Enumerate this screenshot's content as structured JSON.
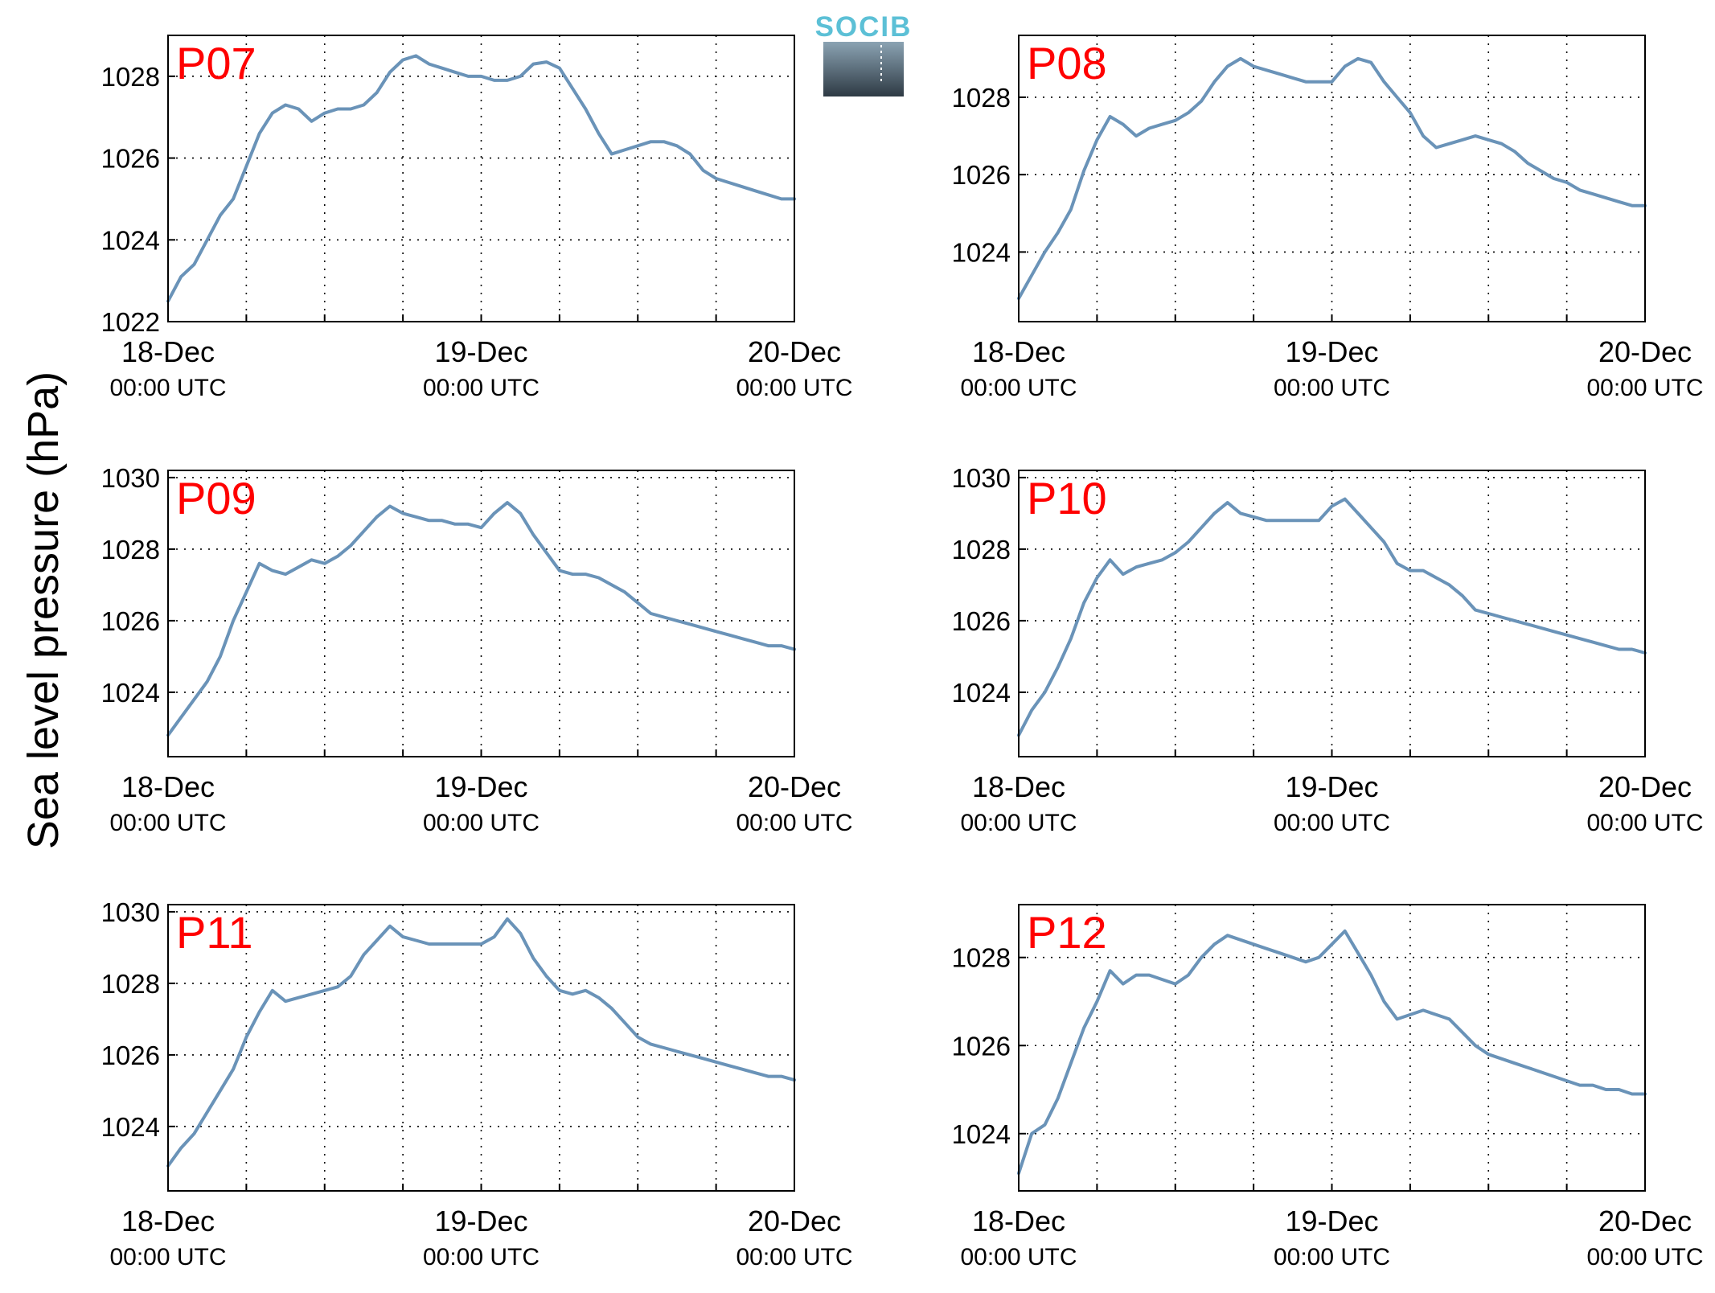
{
  "figure": {
    "ylabel": "Sea level pressure (hPa)",
    "logo_text": "SOCIB",
    "colors": {
      "line": "#6A93B8",
      "title": "#FF0000",
      "logo_top": "#5CC0D6",
      "logo_dark": "#2E3A44"
    }
  },
  "chart_data": [
    {
      "type": "line",
      "title": "P07",
      "x_unit": "hours since 18-Dec 00:00 UTC",
      "x_ticks": [
        {
          "date": "18-Dec",
          "time": "00:00 UTC"
        },
        {
          "date": "19-Dec",
          "time": "00:00 UTC"
        },
        {
          "date": "20-Dec",
          "time": "00:00 UTC"
        }
      ],
      "xlim": [
        0,
        48
      ],
      "ylim": [
        1022,
        1029
      ],
      "yticks": [
        1022,
        1024,
        1026,
        1028
      ],
      "grid": true,
      "x": [
        0,
        1,
        2,
        3,
        4,
        5,
        6,
        7,
        8,
        9,
        10,
        11,
        12,
        13,
        14,
        15,
        16,
        17,
        18,
        19,
        20,
        21,
        22,
        23,
        24,
        25,
        26,
        27,
        28,
        29,
        30,
        31,
        32,
        33,
        34,
        35,
        36,
        37,
        38,
        39,
        40,
        41,
        42,
        43,
        44,
        45,
        46,
        47,
        48
      ],
      "y": [
        1022.5,
        1023.1,
        1023.4,
        1024.0,
        1024.6,
        1025.0,
        1025.8,
        1026.6,
        1027.1,
        1027.3,
        1027.2,
        1026.9,
        1027.1,
        1027.2,
        1027.2,
        1027.3,
        1027.6,
        1028.1,
        1028.4,
        1028.5,
        1028.3,
        1028.2,
        1028.1,
        1028.0,
        1028.0,
        1027.9,
        1027.9,
        1028.0,
        1028.3,
        1028.35,
        1028.2,
        1027.7,
        1027.2,
        1026.6,
        1026.1,
        1026.2,
        1026.3,
        1026.4,
        1026.4,
        1026.3,
        1026.1,
        1025.7,
        1025.5,
        1025.4,
        1025.3,
        1025.2,
        1025.1,
        1025.0,
        1025.0
      ]
    },
    {
      "type": "line",
      "title": "P08",
      "x_unit": "hours since 18-Dec 00:00 UTC",
      "x_ticks": [
        {
          "date": "18-Dec",
          "time": "00:00 UTC"
        },
        {
          "date": "19-Dec",
          "time": "00:00 UTC"
        },
        {
          "date": "20-Dec",
          "time": "00:00 UTC"
        }
      ],
      "xlim": [
        0,
        48
      ],
      "ylim": [
        1022.2,
        1029.6
      ],
      "yticks": [
        1024,
        1026,
        1028
      ],
      "grid": true,
      "x": [
        0,
        1,
        2,
        3,
        4,
        5,
        6,
        7,
        8,
        9,
        10,
        11,
        12,
        13,
        14,
        15,
        16,
        17,
        18,
        19,
        20,
        21,
        22,
        23,
        24,
        25,
        26,
        27,
        28,
        29,
        30,
        31,
        32,
        33,
        34,
        35,
        36,
        37,
        38,
        39,
        40,
        41,
        42,
        43,
        44,
        45,
        46,
        47,
        48
      ],
      "y": [
        1022.8,
        1023.4,
        1024.0,
        1024.5,
        1025.1,
        1026.1,
        1026.9,
        1027.5,
        1027.3,
        1027.0,
        1027.2,
        1027.3,
        1027.4,
        1027.6,
        1027.9,
        1028.4,
        1028.8,
        1029.0,
        1028.8,
        1028.7,
        1028.6,
        1028.5,
        1028.4,
        1028.4,
        1028.4,
        1028.8,
        1029.0,
        1028.9,
        1028.4,
        1028.0,
        1027.6,
        1027.0,
        1026.7,
        1026.8,
        1026.9,
        1027.0,
        1026.9,
        1026.8,
        1026.6,
        1026.3,
        1026.1,
        1025.9,
        1025.8,
        1025.6,
        1025.5,
        1025.4,
        1025.3,
        1025.2,
        1025.2
      ]
    },
    {
      "type": "line",
      "title": "P09",
      "x_unit": "hours since 18-Dec 00:00 UTC",
      "x_ticks": [
        {
          "date": "18-Dec",
          "time": "00:00 UTC"
        },
        {
          "date": "19-Dec",
          "time": "00:00 UTC"
        },
        {
          "date": "20-Dec",
          "time": "00:00 UTC"
        }
      ],
      "xlim": [
        0,
        48
      ],
      "ylim": [
        1022.2,
        1030.2
      ],
      "yticks": [
        1024,
        1026,
        1028,
        1030
      ],
      "grid": true,
      "x": [
        0,
        1,
        2,
        3,
        4,
        5,
        6,
        7,
        8,
        9,
        10,
        11,
        12,
        13,
        14,
        15,
        16,
        17,
        18,
        19,
        20,
        21,
        22,
        23,
        24,
        25,
        26,
        27,
        28,
        29,
        30,
        31,
        32,
        33,
        34,
        35,
        36,
        37,
        38,
        39,
        40,
        41,
        42,
        43,
        44,
        45,
        46,
        47,
        48
      ],
      "y": [
        1022.8,
        1023.3,
        1023.8,
        1024.3,
        1025.0,
        1026.0,
        1026.8,
        1027.6,
        1027.4,
        1027.3,
        1027.5,
        1027.7,
        1027.6,
        1027.8,
        1028.1,
        1028.5,
        1028.9,
        1029.2,
        1029.0,
        1028.9,
        1028.8,
        1028.8,
        1028.7,
        1028.7,
        1028.6,
        1029.0,
        1029.3,
        1029.0,
        1028.4,
        1027.9,
        1027.4,
        1027.3,
        1027.3,
        1027.2,
        1027.0,
        1026.8,
        1026.5,
        1026.2,
        1026.1,
        1026.0,
        1025.9,
        1025.8,
        1025.7,
        1025.6,
        1025.5,
        1025.4,
        1025.3,
        1025.3,
        1025.2
      ]
    },
    {
      "type": "line",
      "title": "P10",
      "x_unit": "hours since 18-Dec 00:00 UTC",
      "x_ticks": [
        {
          "date": "18-Dec",
          "time": "00:00 UTC"
        },
        {
          "date": "19-Dec",
          "time": "00:00 UTC"
        },
        {
          "date": "20-Dec",
          "time": "00:00 UTC"
        }
      ],
      "xlim": [
        0,
        48
      ],
      "ylim": [
        1022.2,
        1030.2
      ],
      "yticks": [
        1024,
        1026,
        1028,
        1030
      ],
      "grid": true,
      "x": [
        0,
        1,
        2,
        3,
        4,
        5,
        6,
        7,
        8,
        9,
        10,
        11,
        12,
        13,
        14,
        15,
        16,
        17,
        18,
        19,
        20,
        21,
        22,
        23,
        24,
        25,
        26,
        27,
        28,
        29,
        30,
        31,
        32,
        33,
        34,
        35,
        36,
        37,
        38,
        39,
        40,
        41,
        42,
        43,
        44,
        45,
        46,
        47,
        48
      ],
      "y": [
        1022.8,
        1023.5,
        1024.0,
        1024.7,
        1025.5,
        1026.5,
        1027.2,
        1027.7,
        1027.3,
        1027.5,
        1027.6,
        1027.7,
        1027.9,
        1028.2,
        1028.6,
        1029.0,
        1029.3,
        1029.0,
        1028.9,
        1028.8,
        1028.8,
        1028.8,
        1028.8,
        1028.8,
        1029.2,
        1029.4,
        1029.0,
        1028.6,
        1028.2,
        1027.6,
        1027.4,
        1027.4,
        1027.2,
        1027.0,
        1026.7,
        1026.3,
        1026.2,
        1026.1,
        1026.0,
        1025.9,
        1025.8,
        1025.7,
        1025.6,
        1025.5,
        1025.4,
        1025.3,
        1025.2,
        1025.2,
        1025.1
      ]
    },
    {
      "type": "line",
      "title": "P11",
      "x_unit": "hours since 18-Dec 00:00 UTC",
      "x_ticks": [
        {
          "date": "18-Dec",
          "time": "00:00 UTC"
        },
        {
          "date": "19-Dec",
          "time": "00:00 UTC"
        },
        {
          "date": "20-Dec",
          "time": "00:00 UTC"
        }
      ],
      "xlim": [
        0,
        48
      ],
      "ylim": [
        1022.2,
        1030.2
      ],
      "yticks": [
        1024,
        1026,
        1028,
        1030
      ],
      "grid": true,
      "x": [
        0,
        1,
        2,
        3,
        4,
        5,
        6,
        7,
        8,
        9,
        10,
        11,
        12,
        13,
        14,
        15,
        16,
        17,
        18,
        19,
        20,
        21,
        22,
        23,
        24,
        25,
        26,
        27,
        28,
        29,
        30,
        31,
        32,
        33,
        34,
        35,
        36,
        37,
        38,
        39,
        40,
        41,
        42,
        43,
        44,
        45,
        46,
        47,
        48
      ],
      "y": [
        1022.9,
        1023.4,
        1023.8,
        1024.4,
        1025.0,
        1025.6,
        1026.5,
        1027.2,
        1027.8,
        1027.5,
        1027.6,
        1027.7,
        1027.8,
        1027.9,
        1028.2,
        1028.8,
        1029.2,
        1029.6,
        1029.3,
        1029.2,
        1029.1,
        1029.1,
        1029.1,
        1029.1,
        1029.1,
        1029.3,
        1029.8,
        1029.4,
        1028.7,
        1028.2,
        1027.8,
        1027.7,
        1027.8,
        1027.6,
        1027.3,
        1026.9,
        1026.5,
        1026.3,
        1026.2,
        1026.1,
        1026.0,
        1025.9,
        1025.8,
        1025.7,
        1025.6,
        1025.5,
        1025.4,
        1025.4,
        1025.3
      ]
    },
    {
      "type": "line",
      "title": "P12",
      "x_unit": "hours since 18-Dec 00:00 UTC",
      "x_ticks": [
        {
          "date": "18-Dec",
          "time": "00:00 UTC"
        },
        {
          "date": "19-Dec",
          "time": "00:00 UTC"
        },
        {
          "date": "20-Dec",
          "time": "00:00 UTC"
        }
      ],
      "xlim": [
        0,
        48
      ],
      "ylim": [
        1022.7,
        1029.2
      ],
      "yticks": [
        1024,
        1026,
        1028
      ],
      "grid": true,
      "x": [
        0,
        1,
        2,
        3,
        4,
        5,
        6,
        7,
        8,
        9,
        10,
        11,
        12,
        13,
        14,
        15,
        16,
        17,
        18,
        19,
        20,
        21,
        22,
        23,
        24,
        25,
        26,
        27,
        28,
        29,
        30,
        31,
        32,
        33,
        34,
        35,
        36,
        37,
        38,
        39,
        40,
        41,
        42,
        43,
        44,
        45,
        46,
        47,
        48
      ],
      "y": [
        1023.1,
        1024.0,
        1024.2,
        1024.8,
        1025.6,
        1026.4,
        1027.0,
        1027.7,
        1027.4,
        1027.6,
        1027.6,
        1027.5,
        1027.4,
        1027.6,
        1028.0,
        1028.3,
        1028.5,
        1028.4,
        1028.3,
        1028.2,
        1028.1,
        1028.0,
        1027.9,
        1028.0,
        1028.3,
        1028.6,
        1028.1,
        1027.6,
        1027.0,
        1026.6,
        1026.7,
        1026.8,
        1026.7,
        1026.6,
        1026.3,
        1026.0,
        1025.8,
        1025.7,
        1025.6,
        1025.5,
        1025.4,
        1025.3,
        1025.2,
        1025.1,
        1025.1,
        1025.0,
        1025.0,
        1024.9,
        1024.9
      ]
    }
  ]
}
